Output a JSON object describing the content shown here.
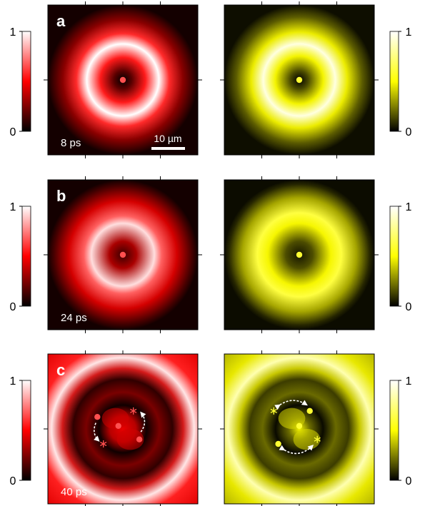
{
  "rows": [
    {
      "letter": "a",
      "time": "8 ps",
      "scale_bar": "10 µm",
      "left": {
        "core_radius": 0.07,
        "ring_peak": 0.37,
        "ring_width": 0.14,
        "outer": 0.0,
        "vortices": [
          [
            0.5,
            0.5
          ]
        ],
        "antivortices": []
      },
      "right": {
        "core_radius": 0.07,
        "ring_peak": 0.38,
        "ring_width": 0.16,
        "outer": 0.0,
        "vortices": [
          [
            0.5,
            0.5
          ]
        ],
        "antivortices": []
      }
    },
    {
      "letter": "b",
      "time": "24 ps",
      "left": {
        "core_radius": 0.1,
        "ring_peak": 0.3,
        "ring_width": 0.16,
        "outer": 0.05,
        "vortices": [
          [
            0.5,
            0.5
          ]
        ],
        "antivortices": []
      },
      "right": {
        "core_radius": 0.1,
        "ring_peak": 0.33,
        "ring_width": 0.18,
        "outer": 0.05,
        "vortices": [
          [
            0.5,
            0.5
          ]
        ],
        "antivortices": []
      }
    },
    {
      "letter": "c",
      "time": "40 ps",
      "left": {
        "core_radius": 0.14,
        "ring_peak": 0.48,
        "ring_width": 0.2,
        "outer": 0.55,
        "vortices": [
          [
            0.33,
            0.42
          ],
          [
            0.47,
            0.48
          ],
          [
            0.61,
            0.57
          ]
        ],
        "antivortices": [
          [
            0.57,
            0.38
          ],
          [
            0.37,
            0.6
          ]
        ]
      },
      "right": {
        "core_radius": 0.14,
        "ring_peak": 0.48,
        "ring_width": 0.2,
        "outer": 0.55,
        "vortices": [
          [
            0.57,
            0.38
          ],
          [
            0.5,
            0.48
          ],
          [
            0.36,
            0.6
          ]
        ],
        "antivortices": [
          [
            0.33,
            0.38
          ],
          [
            0.62,
            0.57
          ]
        ]
      }
    }
  ],
  "colorbar": {
    "max_label": "1",
    "min_label": "0"
  },
  "colors": {
    "red_map": "#ff0000",
    "yellow_map": "#ffff00",
    "red_marker": "#ff4f4f",
    "yellow_marker": "#ffff33"
  }
}
